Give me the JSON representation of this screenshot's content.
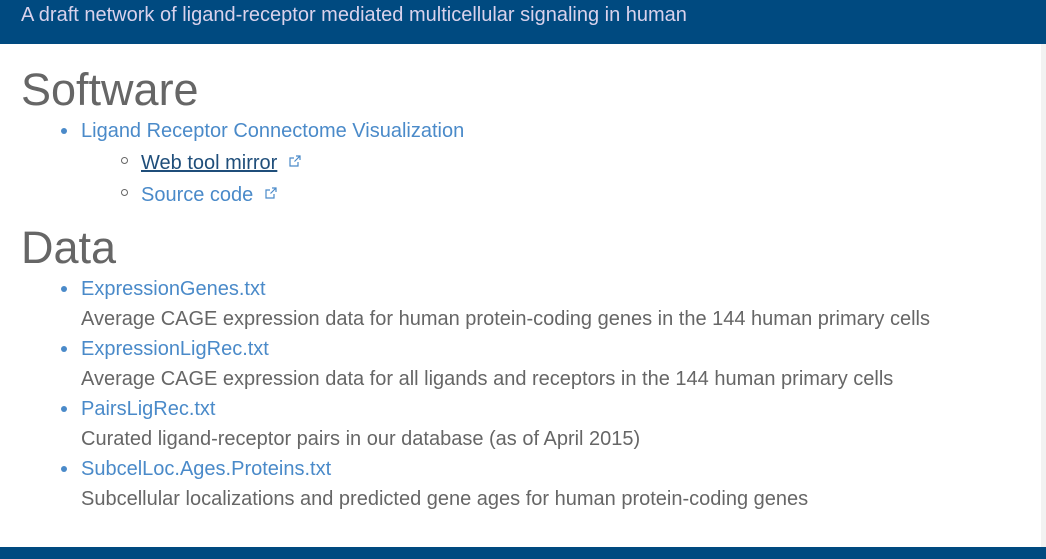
{
  "header": {
    "subtitle": "A draft network of ligand-receptor mediated multicellular signaling in human"
  },
  "software": {
    "heading": "Software",
    "item": {
      "label": "Ligand Receptor Connectome Visualization",
      "sub_items": [
        {
          "label": "Web tool mirror",
          "icon": "external-link-icon"
        },
        {
          "label": "Source code",
          "icon": "external-link-icon"
        }
      ]
    }
  },
  "data": {
    "heading": "Data",
    "files": [
      {
        "name": "ExpressionGenes.txt",
        "description": "Average CAGE expression data for human protein-coding genes in the 144 human primary cells"
      },
      {
        "name": "ExpressionLigRec.txt",
        "description": "Average CAGE expression data for all ligands and receptors in the 144 human primary cells"
      },
      {
        "name": "PairsLigRec.txt",
        "description": "Curated ligand-receptor pairs in our database (as of April 2015)"
      },
      {
        "name": "SubcelLoc.Ages.Proteins.txt",
        "description": "Subcellular localizations and predicted gene ages for human protein-coding genes"
      }
    ]
  },
  "colors": {
    "header_bg": "#004a80",
    "link": "#4a8ac9",
    "visited_link": "#1f4e7a",
    "text": "#666666"
  }
}
